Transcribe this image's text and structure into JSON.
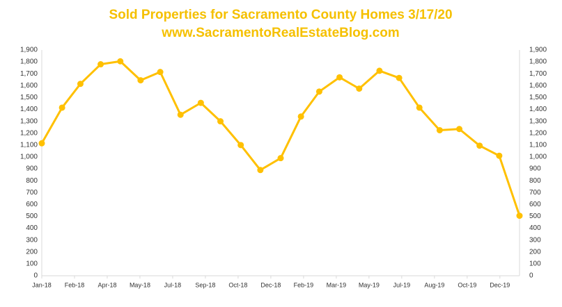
{
  "chart_data": {
    "type": "line",
    "title": "Sold Properties for Sacramento County Homes 3/17/20",
    "subtitle": "www.SacramentoRealEstateBlog.com",
    "x": [
      0,
      31,
      59,
      90,
      120,
      151,
      181,
      212,
      243,
      273,
      304,
      334,
      365,
      396,
      424,
      455,
      485,
      516,
      546,
      577,
      608,
      638,
      669,
      699,
      730
    ],
    "series": [
      {
        "name": "Sold Properties",
        "color": "#ffc000",
        "values": [
          1115,
          1415,
          1615,
          1780,
          1805,
          1645,
          1715,
          1355,
          1455,
          1300,
          1100,
          890,
          990,
          1340,
          1550,
          1670,
          1575,
          1725,
          1665,
          1415,
          1225,
          1235,
          1095,
          1010,
          505
        ]
      }
    ],
    "xlim": [
      0,
      730
    ],
    "xticks": [
      {
        "value": 0,
        "label": "Jan-18"
      },
      {
        "value": 50,
        "label": "Feb-18"
      },
      {
        "value": 100,
        "label": "Apr-18"
      },
      {
        "value": 150,
        "label": "May-18"
      },
      {
        "value": 200,
        "label": "Jul-18"
      },
      {
        "value": 250,
        "label": "Sep-18"
      },
      {
        "value": 300,
        "label": "Oct-18"
      },
      {
        "value": 350,
        "label": "Dec-18"
      },
      {
        "value": 400,
        "label": "Feb-19"
      },
      {
        "value": 450,
        "label": "Mar-19"
      },
      {
        "value": 500,
        "label": "May-19"
      },
      {
        "value": 550,
        "label": "Jul-19"
      },
      {
        "value": 600,
        "label": "Aug-19"
      },
      {
        "value": 650,
        "label": "Oct-19"
      },
      {
        "value": 700,
        "label": "Dec-19"
      }
    ],
    "ylim": [
      0,
      1900
    ],
    "yticks": [
      0,
      100,
      200,
      300,
      400,
      500,
      600,
      700,
      800,
      900,
      {
        "value": 1000,
        "label": "1,000"
      },
      {
        "value": 1100,
        "label": "1,100"
      },
      {
        "value": 1200,
        "label": "1,200"
      },
      {
        "value": 1300,
        "label": "1,300"
      },
      {
        "value": 1400,
        "label": "1,400"
      },
      {
        "value": 1500,
        "label": "1,500"
      },
      {
        "value": 1600,
        "label": "1,600"
      },
      {
        "value": 1700,
        "label": "1,700"
      },
      {
        "value": 1800,
        "label": "1,800"
      },
      {
        "value": 1900,
        "label": "1,900"
      }
    ],
    "y2lim": [
      0,
      1900
    ],
    "y2ticks": [
      0,
      100,
      200,
      300,
      400,
      500,
      600,
      700,
      800,
      900,
      {
        "value": 1000,
        "label": "1,000"
      },
      {
        "value": 1100,
        "label": "1,100"
      },
      {
        "value": 1200,
        "label": "1,200"
      },
      {
        "value": 1300,
        "label": "1,300"
      },
      {
        "value": 1400,
        "label": "1,400"
      },
      {
        "value": 1500,
        "label": "1,500"
      },
      {
        "value": 1600,
        "label": "1,600"
      },
      {
        "value": 1700,
        "label": "1,700"
      },
      {
        "value": 1800,
        "label": "1,800"
      },
      {
        "value": 1900,
        "label": "1,900"
      }
    ],
    "grid": false
  }
}
